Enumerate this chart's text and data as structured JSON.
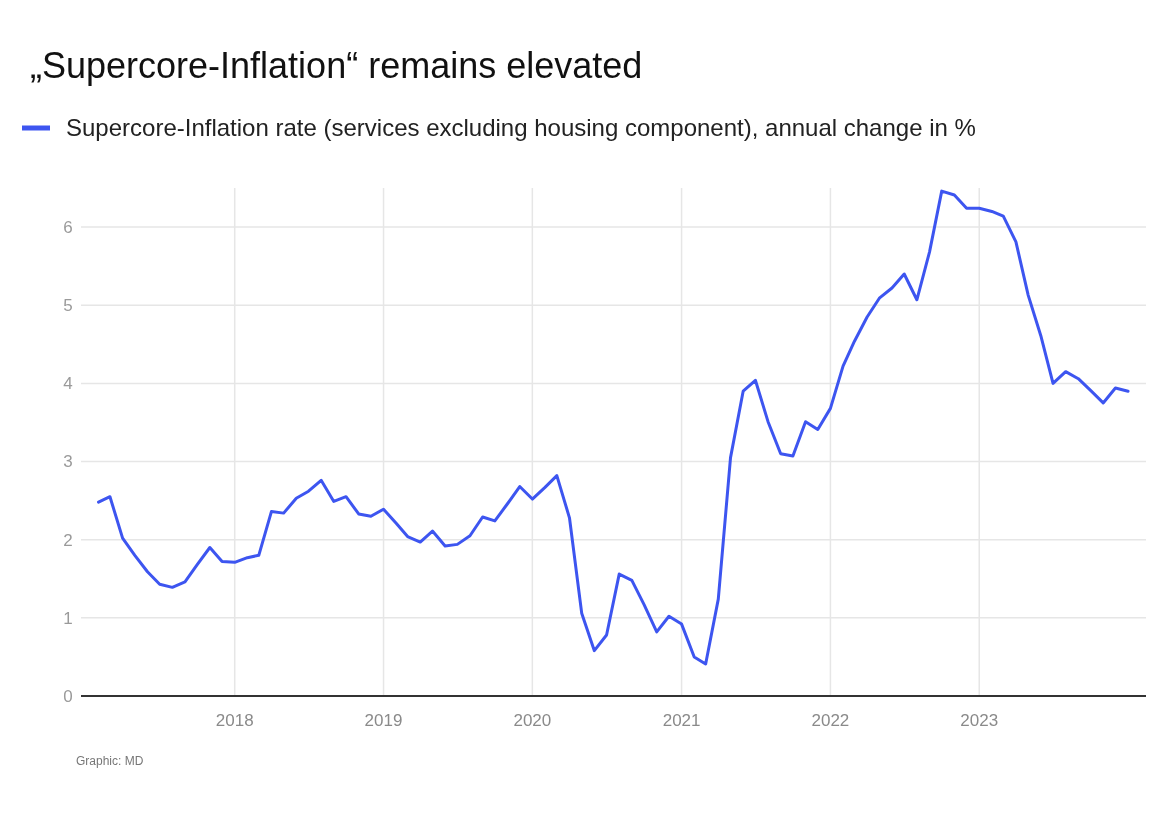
{
  "chart_data": {
    "type": "line",
    "title": "„Supercore-Inflation“ remains elevated",
    "x": [
      "2017-02",
      "2017-03",
      "2017-04",
      "2017-05",
      "2017-06",
      "2017-07",
      "2017-08",
      "2017-09",
      "2017-10",
      "2017-11",
      "2017-12",
      "2018-01",
      "2018-02",
      "2018-03",
      "2018-04",
      "2018-05",
      "2018-06",
      "2018-07",
      "2018-08",
      "2018-09",
      "2018-10",
      "2018-11",
      "2018-12",
      "2019-01",
      "2019-02",
      "2019-03",
      "2019-04",
      "2019-05",
      "2019-06",
      "2019-07",
      "2019-08",
      "2019-09",
      "2019-10",
      "2019-11",
      "2019-12",
      "2020-01",
      "2020-02",
      "2020-03",
      "2020-04",
      "2020-05",
      "2020-06",
      "2020-07",
      "2020-08",
      "2020-09",
      "2020-10",
      "2020-11",
      "2020-12",
      "2021-01",
      "2021-02",
      "2021-03",
      "2021-04",
      "2021-05",
      "2021-06",
      "2021-07",
      "2021-08",
      "2021-09",
      "2021-10",
      "2021-11",
      "2021-12",
      "2022-01",
      "2022-02",
      "2022-03",
      "2022-04",
      "2022-05",
      "2022-06",
      "2022-07",
      "2022-08",
      "2022-09",
      "2022-10",
      "2022-11",
      "2022-12",
      "2023-01",
      "2023-02",
      "2023-03",
      "2023-04",
      "2023-05",
      "2023-06",
      "2023-07",
      "2023-08",
      "2023-09",
      "2023-10",
      "2023-11",
      "2023-12",
      "2024-01"
    ],
    "series": [
      {
        "name": "Supercore-Inflation rate (services excluding housing component), annual change in %",
        "color": "#3d55f0",
        "values": [
          2.48,
          2.55,
          2.02,
          1.8,
          1.59,
          1.43,
          1.39,
          1.46,
          1.68,
          1.9,
          1.72,
          1.71,
          1.77,
          1.8,
          2.36,
          2.34,
          2.53,
          2.62,
          2.76,
          2.49,
          2.55,
          2.33,
          2.3,
          2.39,
          2.21,
          2.04,
          1.97,
          2.11,
          1.92,
          1.94,
          2.05,
          2.29,
          2.24,
          2.46,
          2.68,
          2.52,
          2.67,
          2.82,
          2.28,
          1.06,
          0.58,
          0.78,
          1.56,
          1.48,
          1.17,
          0.82,
          1.02,
          0.92,
          0.5,
          0.41,
          1.24,
          3.05,
          3.9,
          4.04,
          3.51,
          3.1,
          3.07,
          3.51,
          3.41,
          3.68,
          4.22,
          4.54,
          4.85,
          5.09,
          5.22,
          5.4,
          5.07,
          5.68,
          6.46,
          6.41,
          6.24,
          6.24,
          6.2,
          6.14,
          5.81,
          5.13,
          4.61,
          4.0,
          4.15,
          4.06,
          3.91,
          3.75,
          3.94,
          3.9
        ]
      }
    ],
    "xlim": [
      "2016-12-20",
      "2024-02-14"
    ],
    "xticks": [
      {
        "value": "2018-01-01",
        "label": "2018"
      },
      {
        "value": "2019-01-01",
        "label": "2019"
      },
      {
        "value": "2020-01-01",
        "label": "2020"
      },
      {
        "value": "2021-01-01",
        "label": "2021"
      },
      {
        "value": "2022-01-01",
        "label": "2022"
      },
      {
        "value": "2023-01-01",
        "label": "2023"
      }
    ],
    "ylim": [
      0,
      6.5
    ],
    "yticks": [
      0,
      1,
      2,
      3,
      4,
      5,
      6
    ],
    "grid": true,
    "legend": "top left",
    "marker": "none",
    "line_style": "solid",
    "annotations": [
      "Graphic: MD"
    ]
  }
}
